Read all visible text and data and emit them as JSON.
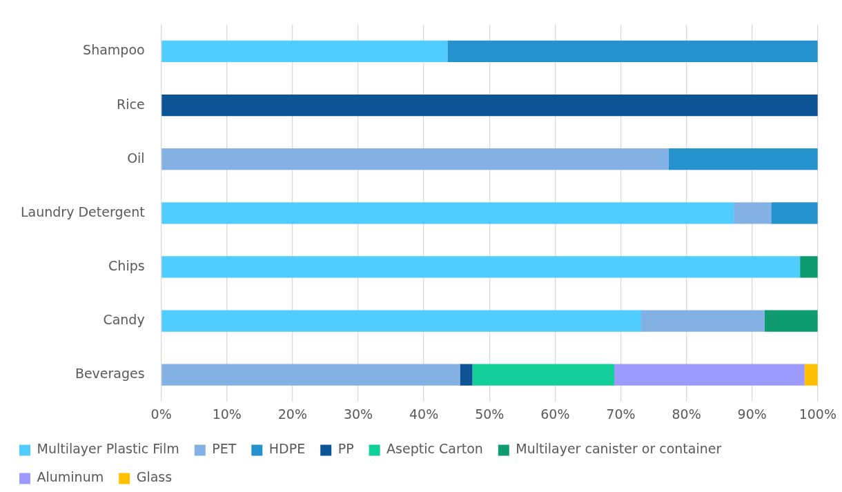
{
  "chart_data": {
    "type": "bar",
    "orientation": "horizontal",
    "stacked": true,
    "categories": [
      "Shampoo",
      "Rice",
      "Oil",
      "Laundry Detergent",
      "Chips",
      "Candy",
      "Beverages"
    ],
    "series": [
      {
        "name": "Multilayer Plastic Film",
        "color": "#50cdfe",
        "values": [
          43.6,
          null,
          null,
          87.2,
          97.3,
          73.1,
          null
        ]
      },
      {
        "name": "PET",
        "color": "#83b1e4",
        "values": [
          null,
          null,
          77.3,
          5.7,
          null,
          18.8,
          45.5
        ]
      },
      {
        "name": "HDPE",
        "color": "#2492cc",
        "values": [
          56.4,
          null,
          22.7,
          7.1,
          null,
          null,
          null
        ]
      },
      {
        "name": "PP",
        "color": "#0e5396",
        "values": [
          null,
          100,
          null,
          null,
          null,
          null,
          1.9
        ]
      },
      {
        "name": "Aseptic Carton",
        "color": "#12cf9a",
        "values": [
          null,
          null,
          null,
          null,
          null,
          null,
          21.6
        ]
      },
      {
        "name": "Multilayer canister or container",
        "color": "#0e9b70",
        "values": [
          null,
          null,
          null,
          null,
          2.7,
          8.1,
          null
        ]
      },
      {
        "name": "Aluminum",
        "color": "#9d9afd",
        "values": [
          null,
          null,
          null,
          null,
          null,
          null,
          29.0
        ]
      },
      {
        "name": "Glass",
        "color": "#ffc000",
        "values": [
          null,
          null,
          null,
          null,
          null,
          null,
          2.0
        ]
      }
    ],
    "xlim": [
      0,
      100
    ],
    "xticks": [
      {
        "value": 0,
        "label": "0%"
      },
      {
        "value": 10,
        "label": "10%"
      },
      {
        "value": 20,
        "label": "20%"
      },
      {
        "value": 30,
        "label": "30%"
      },
      {
        "value": 40,
        "label": "40%"
      },
      {
        "value": 50,
        "label": "50%"
      },
      {
        "value": 60,
        "label": "60%"
      },
      {
        "value": 70,
        "label": "70%"
      },
      {
        "value": 80,
        "label": "80%"
      },
      {
        "value": 90,
        "label": "90%"
      },
      {
        "value": 100,
        "label": "100%"
      }
    ],
    "grid": "x",
    "legend": "bottom"
  }
}
